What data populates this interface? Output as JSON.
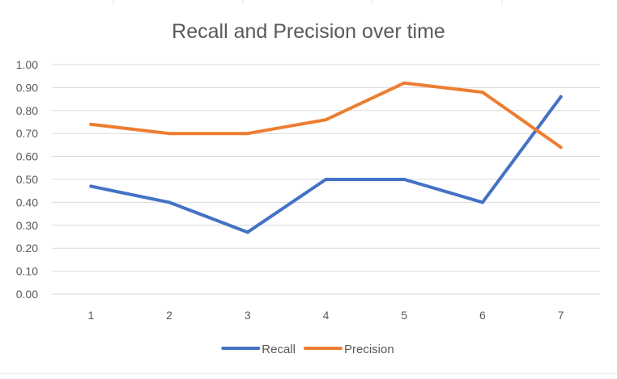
{
  "chart_data": {
    "type": "line",
    "title": "Recall and Precision over time",
    "xlabel": "",
    "ylabel": "",
    "categories": [
      "1",
      "2",
      "3",
      "4",
      "5",
      "6",
      "7"
    ],
    "series": [
      {
        "name": "Recall",
        "color": "#4472C4",
        "values": [
          0.47,
          0.4,
          0.27,
          0.5,
          0.5,
          0.4,
          0.86
        ]
      },
      {
        "name": "Precision",
        "color": "#ED7D31",
        "values": [
          0.74,
          0.7,
          0.7,
          0.76,
          0.92,
          0.88,
          0.64
        ]
      }
    ],
    "ylim": [
      0,
      1.0
    ],
    "yticks": [
      "0.00",
      "0.10",
      "0.20",
      "0.30",
      "0.40",
      "0.50",
      "0.60",
      "0.70",
      "0.80",
      "0.90",
      "1.00"
    ],
    "grid": "horizontal",
    "legend": "bottom",
    "colors": {
      "grid": "#d9d9d9",
      "text": "#595959"
    }
  }
}
